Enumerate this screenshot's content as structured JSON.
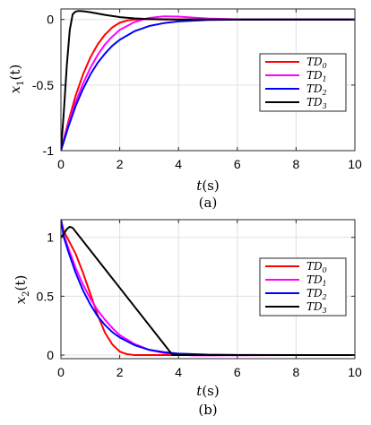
{
  "chart_data": [
    {
      "type": "line",
      "id": "a",
      "panel_label": "(a)",
      "xlabel": "t(s)",
      "ylabel": "x1(t)",
      "ylabel_main": "x",
      "ylabel_sub": "1",
      "ylabel_tail": "(t)",
      "xlim": [
        0,
        10
      ],
      "ylim": [
        -1,
        0.08
      ],
      "xticks": [
        0,
        2,
        4,
        6,
        8,
        10
      ],
      "yticks": [
        -1,
        -0.5,
        0
      ],
      "ytick_labels": [
        "-1",
        "-0.5",
        "0"
      ],
      "grid": true,
      "legend_position": "right-middle",
      "series": [
        {
          "name": "TD",
          "sub": "0",
          "color": "#ff0000",
          "x": [
            0,
            0.25,
            0.5,
            0.75,
            1.0,
            1.25,
            1.5,
            1.75,
            2.0,
            2.25,
            2.5,
            2.75,
            3.0,
            3.5,
            4,
            5,
            6,
            8,
            10
          ],
          "y": [
            -1,
            -0.78,
            -0.58,
            -0.42,
            -0.29,
            -0.19,
            -0.115,
            -0.06,
            -0.025,
            -0.008,
            0.0,
            0.003,
            0.002,
            0.0,
            0,
            0,
            0,
            0,
            0
          ]
        },
        {
          "name": "TD",
          "sub": "1",
          "color": "#ff00ff",
          "x": [
            0,
            0.25,
            0.5,
            0.75,
            1.0,
            1.25,
            1.5,
            1.75,
            2.0,
            2.5,
            3.0,
            3.5,
            4.0,
            4.5,
            5.0,
            6.0,
            7.0,
            8,
            10
          ],
          "y": [
            -1,
            -0.8,
            -0.63,
            -0.49,
            -0.37,
            -0.27,
            -0.19,
            -0.13,
            -0.08,
            -0.02,
            0.012,
            0.024,
            0.022,
            0.014,
            0.007,
            0.001,
            0,
            0,
            0
          ]
        },
        {
          "name": "TD",
          "sub": "2",
          "color": "#0000ff",
          "x": [
            0,
            0.25,
            0.5,
            0.75,
            1.0,
            1.25,
            1.5,
            1.75,
            2.0,
            2.5,
            3.0,
            3.5,
            4.0,
            5.0,
            6.0,
            7,
            8,
            10
          ],
          "y": [
            -1,
            -0.82,
            -0.66,
            -0.53,
            -0.42,
            -0.33,
            -0.26,
            -0.2,
            -0.155,
            -0.09,
            -0.05,
            -0.028,
            -0.015,
            -0.004,
            -0.001,
            0,
            0,
            0
          ]
        },
        {
          "name": "TD",
          "sub": "3",
          "color": "#000000",
          "x": [
            0,
            0.1,
            0.2,
            0.3,
            0.4,
            0.5,
            0.6,
            0.75,
            1.0,
            1.5,
            2.0,
            2.5,
            3.0,
            4.0,
            5.0,
            6,
            8,
            10
          ],
          "y": [
            -1,
            -0.7,
            -0.35,
            -0.08,
            0.04,
            0.06,
            0.065,
            0.063,
            0.055,
            0.035,
            0.018,
            0.008,
            0.003,
            0,
            0,
            0,
            0,
            0
          ]
        }
      ]
    },
    {
      "type": "line",
      "id": "b",
      "panel_label": "(b)",
      "xlabel": "t(s)",
      "ylabel": "x2(t)",
      "ylabel_main": "x",
      "ylabel_sub": "2",
      "ylabel_tail": "(t)",
      "xlim": [
        0,
        10
      ],
      "ylim": [
        -0.03,
        1.15
      ],
      "xticks": [
        0,
        2,
        4,
        6,
        8,
        10
      ],
      "yticks": [
        0,
        0.5,
        1
      ],
      "ytick_labels": [
        "0",
        "0.5",
        "1"
      ],
      "grid": true,
      "legend_position": "right-middle",
      "series": [
        {
          "name": "TD",
          "sub": "0",
          "color": "#ff0000",
          "x": [
            0,
            0.1,
            0.25,
            0.5,
            0.75,
            1.0,
            1.25,
            1.5,
            1.75,
            2.0,
            2.25,
            2.5,
            3.0,
            4.0,
            6,
            8,
            10
          ],
          "y": [
            1.15,
            1.05,
            0.98,
            0.86,
            0.7,
            0.52,
            0.34,
            0.19,
            0.09,
            0.03,
            0.008,
            0,
            0,
            0,
            0,
            0,
            0
          ]
        },
        {
          "name": "TD",
          "sub": "1",
          "color": "#ff00ff",
          "x": [
            0,
            0.1,
            0.25,
            0.5,
            0.75,
            1.0,
            1.25,
            1.5,
            1.75,
            2.0,
            2.5,
            3.0,
            3.5,
            4.0,
            4.5,
            5.0,
            6,
            8,
            10
          ],
          "y": [
            1.15,
            1.02,
            0.91,
            0.74,
            0.6,
            0.48,
            0.38,
            0.3,
            0.23,
            0.17,
            0.095,
            0.045,
            0.018,
            0.005,
            -0.002,
            -0.002,
            -0.001,
            0,
            0
          ]
        },
        {
          "name": "TD",
          "sub": "2",
          "color": "#0000ff",
          "x": [
            0,
            0.1,
            0.25,
            0.5,
            0.75,
            1.0,
            1.25,
            1.5,
            1.75,
            2.0,
            2.5,
            3.0,
            3.5,
            4.0,
            5.0,
            6,
            8,
            10
          ],
          "y": [
            1.15,
            1.0,
            0.88,
            0.7,
            0.55,
            0.43,
            0.33,
            0.255,
            0.195,
            0.15,
            0.085,
            0.045,
            0.025,
            0.013,
            0.004,
            0.001,
            0,
            0
          ]
        },
        {
          "name": "TD",
          "sub": "3",
          "color": "#000000",
          "x": [
            0,
            0.1,
            0.2,
            0.3,
            0.4,
            3.8,
            4.0,
            10
          ],
          "y": [
            1.0,
            1.03,
            1.07,
            1.09,
            1.08,
            0.0,
            0.0,
            0.0
          ]
        }
      ]
    }
  ]
}
